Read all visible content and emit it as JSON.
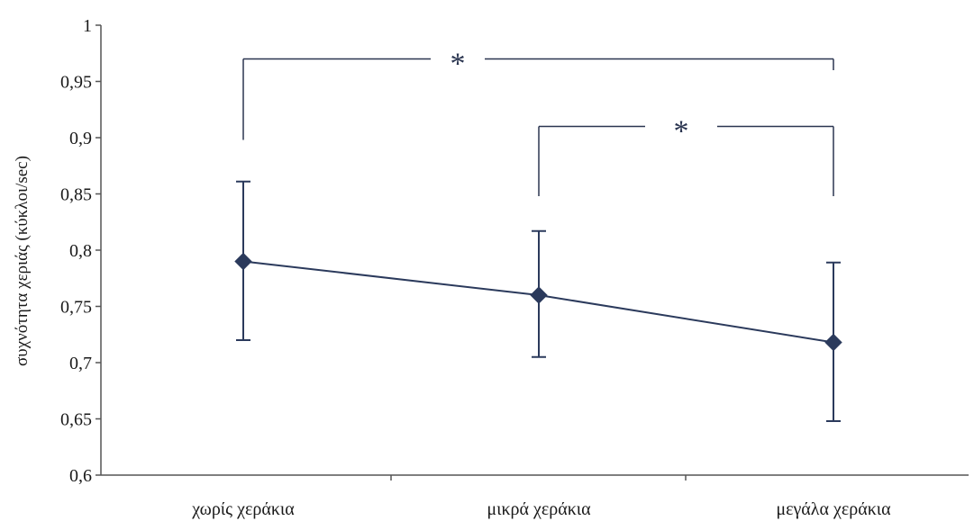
{
  "chart_data": {
    "type": "line",
    "categories": [
      "χωρίς χεράκια",
      "μικρά χεράκια",
      "μεγάλα χεράκια"
    ],
    "series": [
      {
        "values": [
          0.79,
          0.76,
          0.718
        ],
        "error_low": [
          0.72,
          0.705,
          0.648
        ],
        "error_high": [
          0.861,
          0.817,
          0.789
        ]
      }
    ],
    "ylabel": "συχνότητα χεριάς (κύκλοι/sec)",
    "xlabel": "",
    "title": "",
    "ylim": [
      0.6,
      1.0
    ],
    "y_ticks": [
      "0,6",
      "0,65",
      "0,7",
      "0,75",
      "0,8",
      "0,85",
      "0,9",
      "0,95",
      "1"
    ],
    "grid": false,
    "legend": "none",
    "significance": [
      {
        "from": 0,
        "to": 2,
        "label": "*",
        "level": 0.97
      },
      {
        "from": 1,
        "to": 2,
        "label": "*",
        "level": 0.91
      }
    ],
    "colors": {
      "line": "#2b3a5c",
      "marker": "#2b3a5c",
      "axis": "#555555",
      "bracket": "#2a3550"
    }
  }
}
